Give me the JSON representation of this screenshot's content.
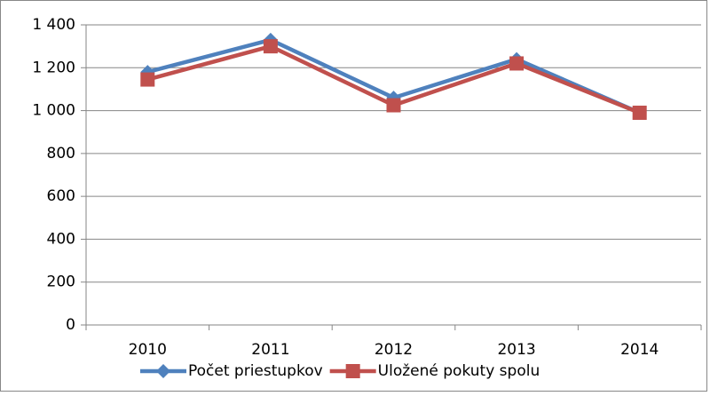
{
  "chart_data": {
    "type": "line",
    "categories": [
      "2010",
      "2011",
      "2012",
      "2013",
      "2014"
    ],
    "series": [
      {
        "name": "Počet priestupkov",
        "color": "#4f81bd",
        "marker": "diamond",
        "values": [
          1180,
          1330,
          1060,
          1240,
          990
        ]
      },
      {
        "name": "Uložené pokuty spolu",
        "color": "#c0504d",
        "marker": "square",
        "values": [
          1145,
          1300,
          1025,
          1220,
          990
        ]
      }
    ],
    "ylim": [
      0,
      1400
    ],
    "yticks": [
      0,
      200,
      400,
      600,
      800,
      {
        "value": 1000,
        "label": "1 000"
      },
      {
        "value": 1200,
        "label": "1 200"
      },
      {
        "value": 1400,
        "label": "1 400"
      }
    ],
    "grid": true,
    "legend": "bottom"
  }
}
